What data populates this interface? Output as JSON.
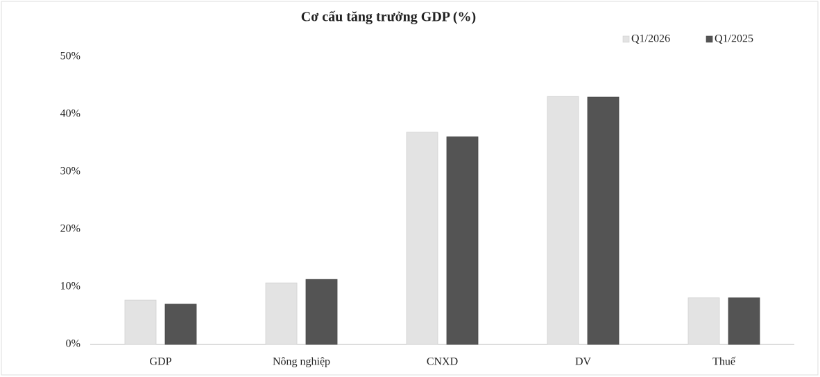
{
  "chart_data": {
    "type": "bar",
    "title": "Cơ cấu tăng trưởng GDP (%)",
    "categories": [
      "GDP",
      "Nông nghiệp",
      "CNXD",
      "DV",
      "Thuế"
    ],
    "series": [
      {
        "name": "Q1/2026",
        "color": "#e3e3e3",
        "values": [
          7.7,
          10.7,
          36.9,
          43.1,
          8.1
        ]
      },
      {
        "name": "Q1/2025",
        "color": "#545454",
        "values": [
          7.0,
          11.3,
          36.1,
          43.0,
          8.1
        ]
      }
    ],
    "ylim": [
      0,
      50
    ],
    "yticks": [
      {
        "value": 0,
        "label": "0%"
      },
      {
        "value": 10,
        "label": "10%"
      },
      {
        "value": 20,
        "label": "20%"
      },
      {
        "value": 30,
        "label": "30%"
      },
      {
        "value": 40,
        "label": "40%"
      },
      {
        "value": 50,
        "label": "50%"
      }
    ],
    "grid": false,
    "legend": "top-right"
  }
}
